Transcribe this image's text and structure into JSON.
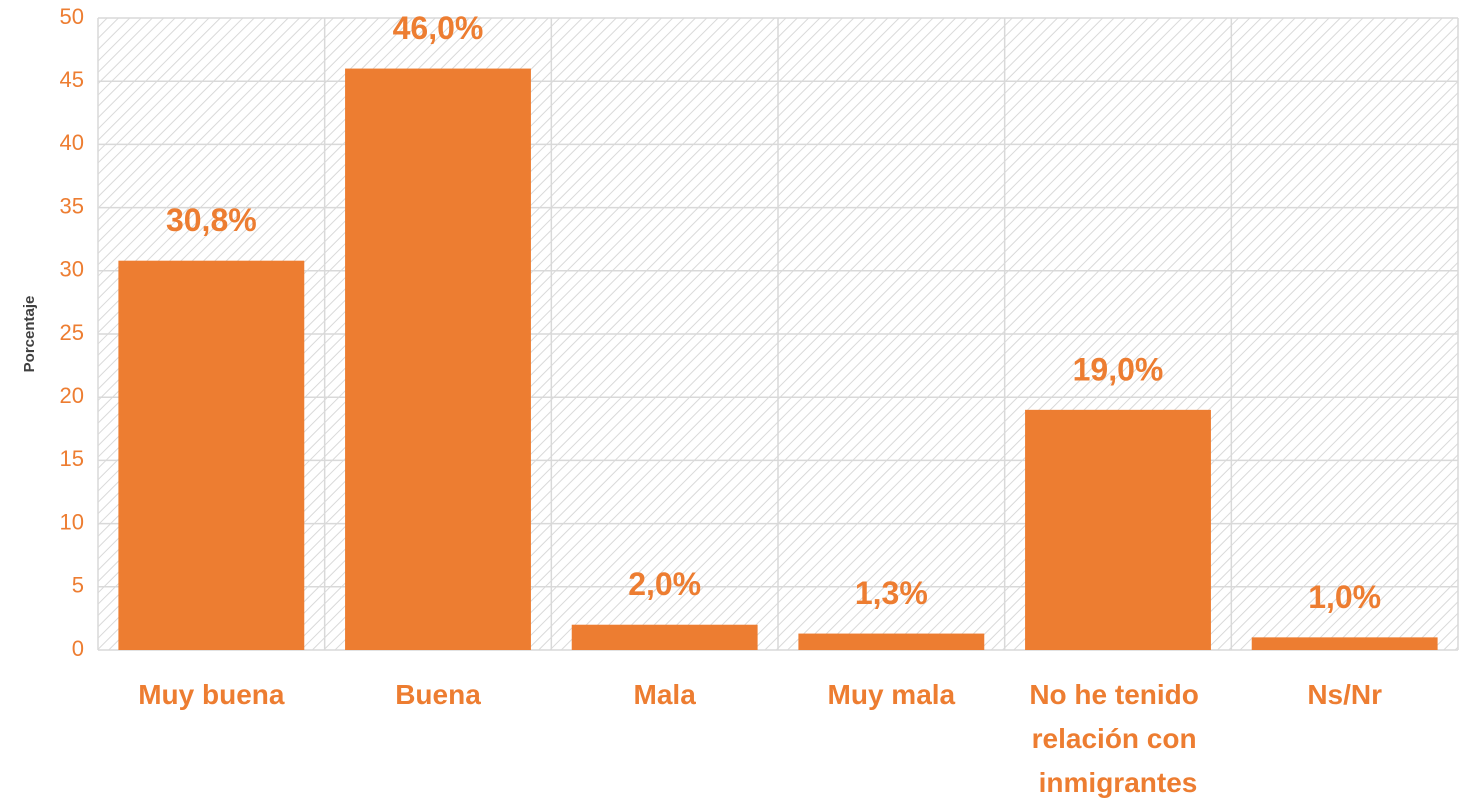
{
  "chart_data": {
    "type": "bar",
    "y_label": "Porcentaje",
    "categories": [
      "Muy buena",
      "Buena",
      "Mala",
      "Muy mala",
      "No he tenido relación con inmigrantes",
      "Ns/Nr"
    ],
    "values": [
      30.8,
      46.0,
      2.0,
      1.3,
      19.0,
      1.0
    ],
    "value_labels": [
      "30,8%",
      "46,0%",
      "2,0%",
      "1,3%",
      "19,0%",
      "1,0%"
    ],
    "color": "#ed7d31",
    "ylim": [
      0,
      50
    ],
    "yticks": [
      0,
      5,
      10,
      15,
      20,
      25,
      30,
      35,
      40,
      45,
      50
    ],
    "grid": true
  }
}
